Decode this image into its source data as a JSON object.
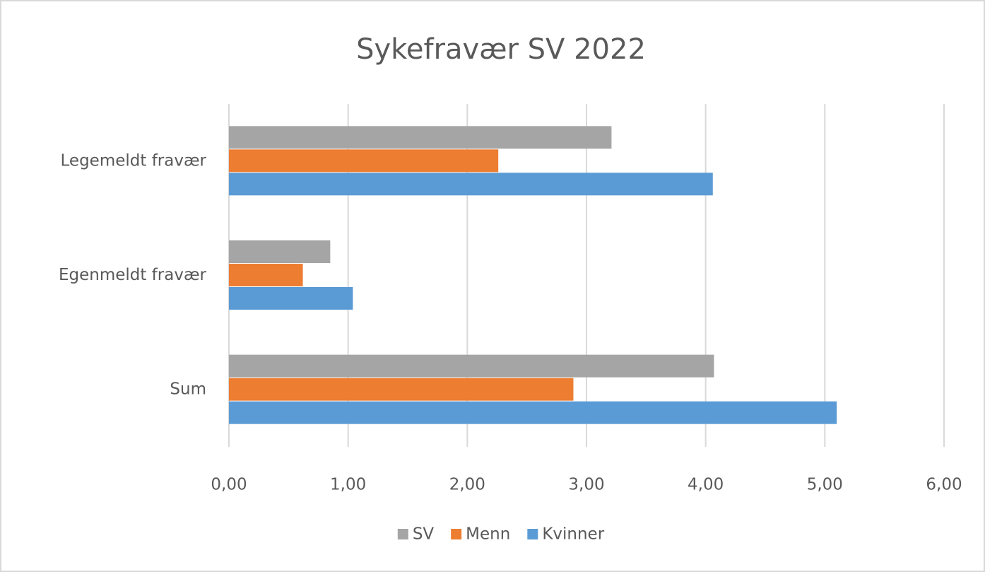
{
  "chart_data": {
    "type": "bar",
    "horizontal": true,
    "title": "Sykefravær SV 2022",
    "categories": [
      "Legemeldt fravær",
      "Egenmeldt fravær",
      "Sum"
    ],
    "series": [
      {
        "name": "SV",
        "color": "#a5a5a5",
        "values": [
          3.21,
          0.85,
          4.07
        ]
      },
      {
        "name": "Menn",
        "color": "#ed7d31",
        "values": [
          2.26,
          0.62,
          2.89
        ]
      },
      {
        "name": "Kvinner",
        "color": "#5b9bd5",
        "values": [
          4.06,
          1.04,
          5.1
        ]
      }
    ],
    "xlim": [
      0,
      6
    ],
    "xticks": [
      {
        "value": 0,
        "label": "0,00"
      },
      {
        "value": 1,
        "label": "1,00"
      },
      {
        "value": 2,
        "label": "2,00"
      },
      {
        "value": 3,
        "label": "3,00"
      },
      {
        "value": 4,
        "label": "4,00"
      },
      {
        "value": 5,
        "label": "5,00"
      },
      {
        "value": 6,
        "label": "6,00"
      }
    ],
    "grid": true,
    "legend": "bottom"
  }
}
